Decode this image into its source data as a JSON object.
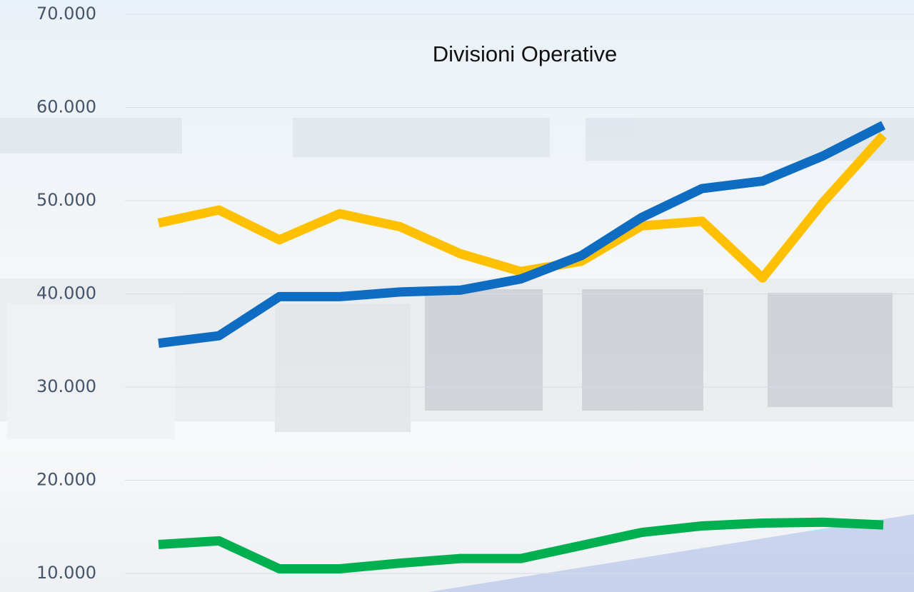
{
  "chart_data": {
    "type": "line",
    "title": "Divisioni Operative",
    "categories": [
      null,
      null,
      null,
      null,
      null,
      null,
      null,
      null,
      null,
      null,
      null,
      null,
      null
    ],
    "series": [
      {
        "color": "#ffc000",
        "values": [
          47600,
          49000,
          45800,
          48600,
          47200,
          44300,
          42400,
          43500,
          47300,
          47800,
          41700,
          49800,
          57000
        ]
      },
      {
        "color": "#0e6cc2",
        "values": [
          34700,
          35500,
          39700,
          39700,
          40200,
          40400,
          41600,
          44100,
          48200,
          51300,
          52100,
          54800,
          58100
        ]
      },
      {
        "color": "#00b050",
        "values": [
          13100,
          13500,
          10500,
          10500,
          11100,
          11600,
          11600,
          13000,
          14400,
          15100,
          15400,
          15500,
          15200
        ]
      }
    ],
    "ylim": [
      10000,
      70000
    ],
    "yticks": [
      {
        "value": 10000,
        "label": "10.000"
      },
      {
        "value": 20000,
        "label": "20.000"
      },
      {
        "value": 30000,
        "label": "30.000"
      },
      {
        "value": 40000,
        "label": "40.000"
      },
      {
        "value": 50000,
        "label": "50.000"
      },
      {
        "value": 60000,
        "label": "60.000"
      },
      {
        "value": 70000,
        "label": "70.000"
      }
    ],
    "grid": true
  }
}
